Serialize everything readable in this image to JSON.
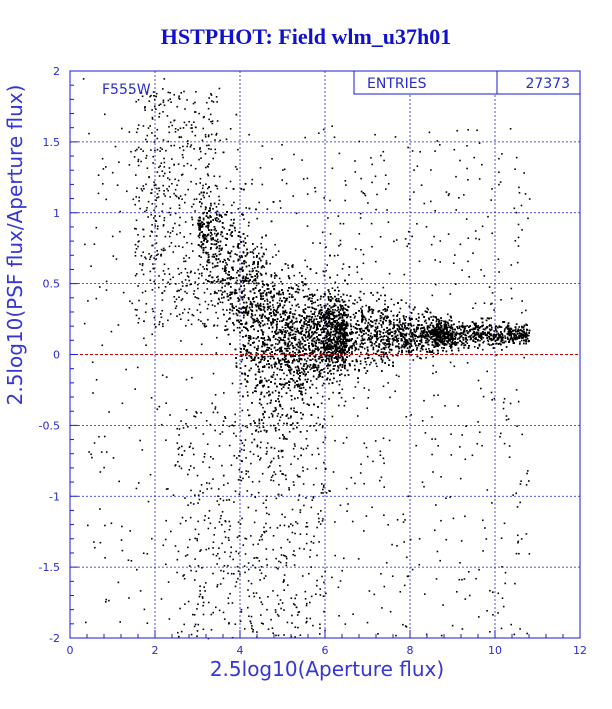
{
  "title": "HSTPHOT: Field wlm_u37h01",
  "filter_label": "F555W",
  "stats": {
    "label": "ENTRIES",
    "value": "27373"
  },
  "colors": {
    "axis": "#1a1ad8",
    "points": "#000000",
    "reference_line": "#cc0000",
    "title": "#1010d0"
  },
  "chart_data": {
    "type": "scatter",
    "title": "HSTPHOT: Field wlm_u37h01",
    "xlabel": "2.5log10(Aperture flux)",
    "ylabel": "2.5log10(PSF flux/Aperture flux)",
    "xlim": [
      0,
      12
    ],
    "ylim": [
      -2,
      2
    ],
    "x_ticks": [
      0,
      2,
      4,
      6,
      8,
      10,
      12
    ],
    "y_ticks": [
      -2,
      -1.5,
      -1,
      -0.5,
      0,
      0.5,
      1,
      1.5,
      2
    ],
    "grid": "dashed",
    "reference_line_y": 0,
    "entries": 27373,
    "point_count_rendered": 9000,
    "distribution_note_free": true,
    "density_profile": {
      "x": [
        3.0,
        3.5,
        4.0,
        4.5,
        5.0,
        6.0,
        7.0,
        8.0,
        9.0,
        10.0,
        10.8
      ],
      "y_center": [
        0.95,
        0.7,
        0.45,
        0.25,
        0.12,
        0.14,
        0.15,
        0.15,
        0.15,
        0.15,
        0.15
      ],
      "y_spread": [
        0.1,
        0.2,
        0.3,
        0.3,
        0.25,
        0.15,
        0.12,
        0.08,
        0.05,
        0.04,
        0.03
      ]
    },
    "scattered_outliers": [
      [
        0.3,
        1.95
      ],
      [
        0.8,
        1.7
      ],
      [
        1.2,
        1.6
      ],
      [
        1.4,
        1.85
      ],
      [
        1.5,
        1.4
      ],
      [
        1.8,
        1.55
      ],
      [
        2.2,
        1.95
      ],
      [
        2.5,
        1.2
      ],
      [
        1.0,
        0.7
      ],
      [
        0.6,
        0.4
      ],
      [
        1.3,
        -0.1
      ],
      [
        0.9,
        -0.4
      ],
      [
        1.6,
        -0.9
      ],
      [
        1.8,
        -1.4
      ],
      [
        2.3,
        -1.6
      ],
      [
        3.0,
        -1.9
      ],
      [
        3.5,
        -1.8
      ],
      [
        2.8,
        -1.3
      ],
      [
        3.2,
        -0.9
      ],
      [
        4.2,
        -1.7
      ],
      [
        4.5,
        -1.3
      ],
      [
        5.0,
        -1.6
      ],
      [
        6.0,
        -0.8
      ],
      [
        6.5,
        -1.1
      ],
      [
        7.5,
        -0.6
      ],
      [
        8.5,
        -0.7
      ],
      [
        9.3,
        -0.5
      ],
      [
        10.3,
        -0.45
      ],
      [
        10.5,
        -0.5
      ],
      [
        7.0,
        -0.3
      ],
      [
        9.8,
        -0.95
      ],
      [
        0.6,
        0.9
      ],
      [
        1.1,
        1.2
      ],
      [
        2.0,
        0.2
      ],
      [
        0.4,
        -1.2
      ],
      [
        1.9,
        -0.3
      ]
    ]
  }
}
